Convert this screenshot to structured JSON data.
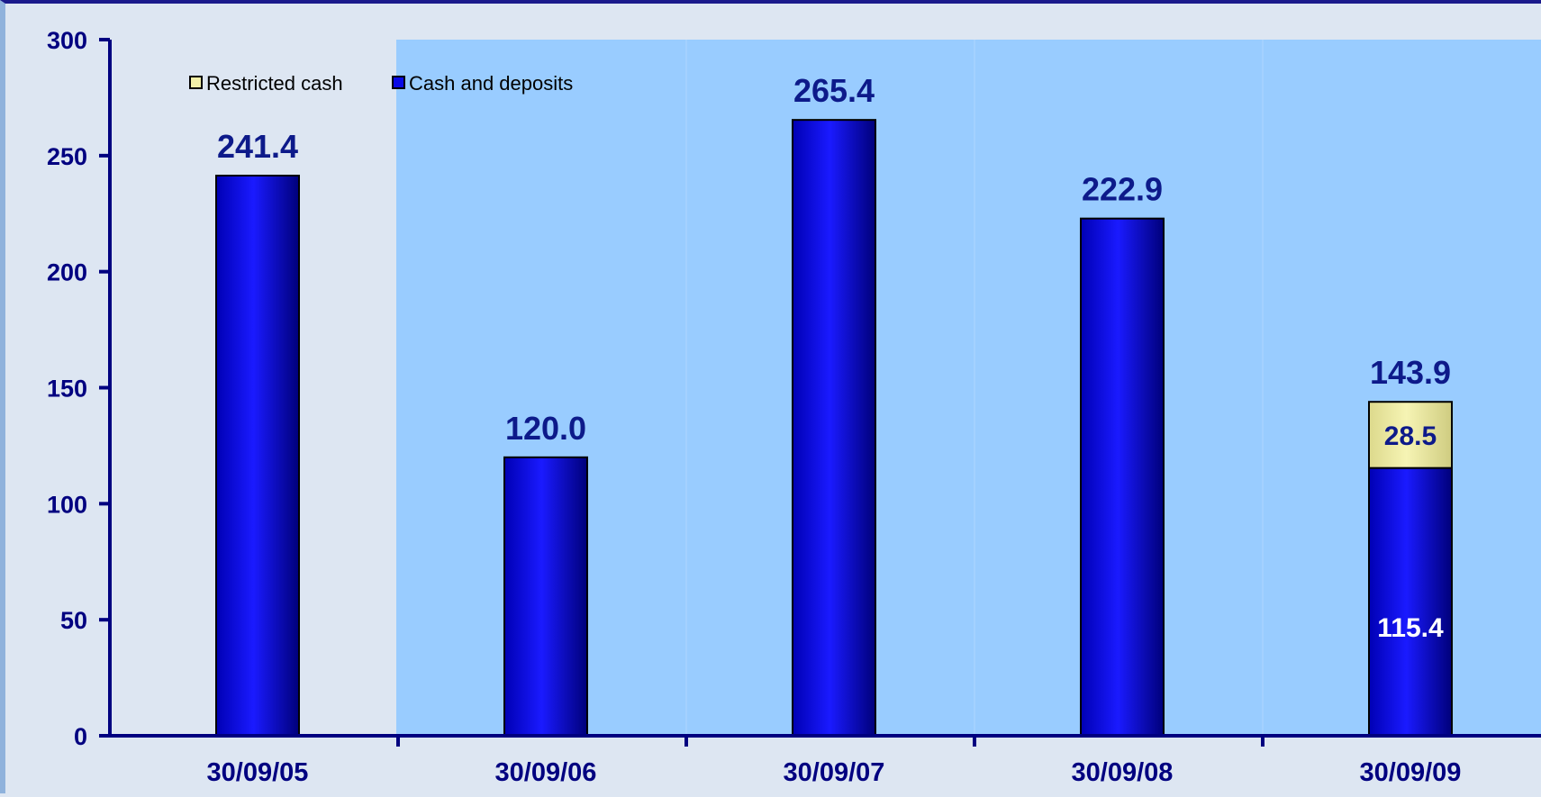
{
  "chart_data": {
    "type": "bar",
    "stacked": true,
    "categories": [
      "30/09/05",
      "30/09/06",
      "30/09/07",
      "30/09/08",
      "30/09/09"
    ],
    "series": [
      {
        "name": "Cash and deposits",
        "values": [
          241.4,
          120.0,
          265.4,
          222.9,
          115.4
        ],
        "color": "#0a0ae6"
      },
      {
        "name": "Restricted cash",
        "values": [
          0,
          0,
          0,
          0,
          28.5
        ],
        "color": "#f2f0a8"
      }
    ],
    "totals": [
      "241.4",
      "120.0",
      "265.4",
      "222.9",
      "143.9"
    ],
    "segment_labels": [
      {
        "category_index": 4,
        "series_index": 0,
        "text": "115.4",
        "color": "#ffffff"
      },
      {
        "category_index": 4,
        "series_index": 1,
        "text": "28.5",
        "color": "#0d1a8a"
      }
    ],
    "yticks": [
      "0",
      "50",
      "100",
      "150",
      "200",
      "250",
      "300"
    ],
    "ylim": [
      0,
      300
    ],
    "legend": {
      "placement": "top-left",
      "entries": [
        "Restricted cash",
        "Cash and deposits"
      ]
    },
    "colors": {
      "axis": "#000080",
      "plot_background": "#99ccff",
      "page_background": "#dde6f2",
      "bar_edge": "#000000"
    }
  }
}
